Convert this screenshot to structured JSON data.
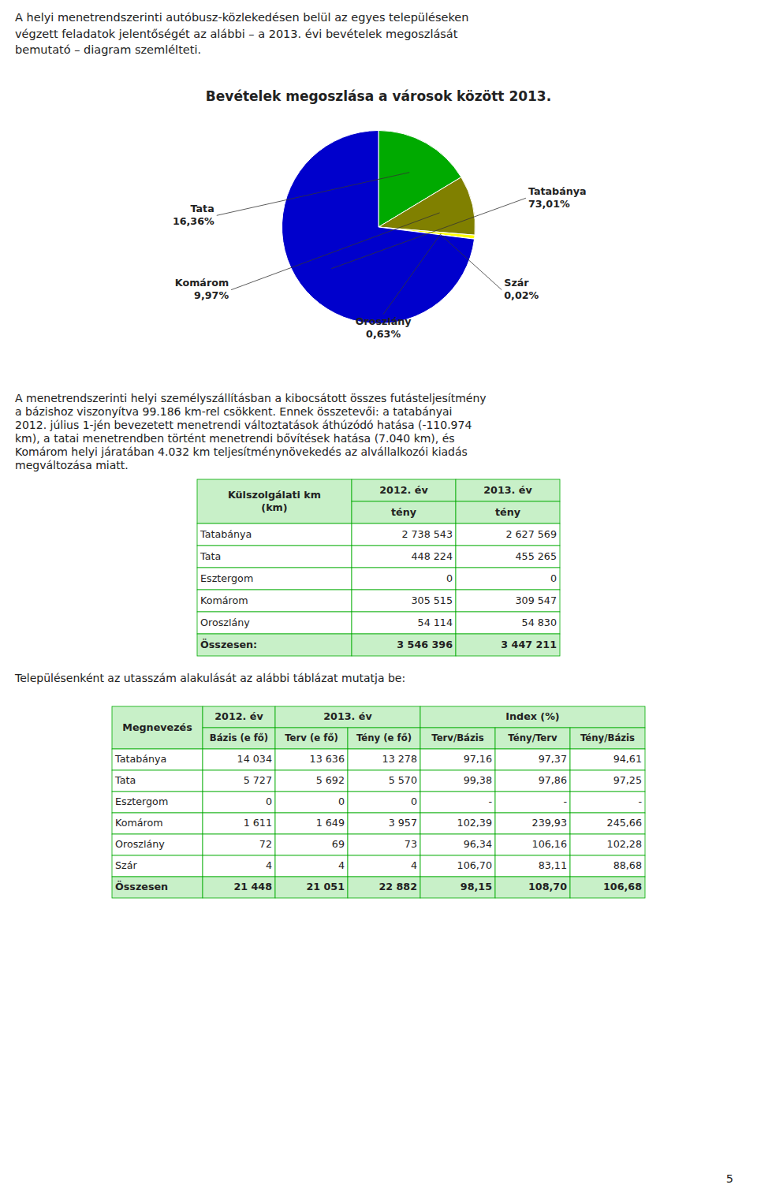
{
  "page_title": [
    "A helyi menetrendszerinti autóbusz-közlekedésen belül az egyes településeken",
    "végzett feladatok jelentőségét az alábbi – a 2013. évi bevételek megoszlását",
    "bemutató – diagram szemlélteti."
  ],
  "chart_data": {
    "type": "pie",
    "title": "Bevételek megoszlása a városok között 2013.",
    "categories": [
      "Tata",
      "Komárom",
      "Oroszlány",
      "Szár",
      "Tatabánya"
    ],
    "values": [
      16.36,
      9.97,
      0.63,
      0.02,
      73.01
    ],
    "value_labels": [
      "16,36%",
      "9,97%",
      "0,63%",
      "0,02%",
      "73,01%"
    ],
    "colors": [
      "#00aa00",
      "#808000",
      "#ffff00",
      "#c0c0c0",
      "#0000cc"
    ]
  },
  "body_text": [
    "A menetrendszerinti helyi személyszállításban a kibocsátott összes futásteljesítmény",
    "a bázishoz viszonyítva 99.186 km-rel csökkent. Ennek összetevői: a tatabányai",
    "2012. július 1-jén bevezetett menetrendi változtatások áthúzódó hatása (-110.974",
    "km), a tatai menetrendben történt menetrendi bővítések hatása (7.040 km), és",
    "Komárom helyi járatában 4.032 km teljesítménynövekedés az alvállalkozói kiadás",
    "megváltozása miatt."
  ],
  "between_tables_text": "Településenként az utasszám alakulását az alábbi táblázat mutatja be:",
  "header_color": "#c8f0c8",
  "border_color": "#00aa00",
  "tables": [
    {
      "corner": [
        "Külszolgálati km",
        "(km)"
      ],
      "groups": [
        {
          "label": "2012. év",
          "span": 1
        },
        {
          "label": "2013. év",
          "span": 1
        }
      ],
      "subheaders": [
        "tény",
        "tény"
      ],
      "rows": [
        [
          "Tatabánya",
          "2 738 543",
          "2 627 569"
        ],
        [
          "Tata",
          "448 224",
          "455 265"
        ],
        [
          "Esztergom",
          "0",
          "0"
        ],
        [
          "Komárom",
          "305 515",
          "309 547"
        ],
        [
          "Oroszlány",
          "54 114",
          "54 830"
        ]
      ],
      "total": [
        "Összesen:",
        "3 546 396",
        "3 447 211"
      ]
    },
    {
      "corner": [
        "Megnevezés"
      ],
      "groups": [
        {
          "label": "2012. év",
          "span": 1
        },
        {
          "label": "2013. év",
          "span": 2
        },
        {
          "label": "Index (%)",
          "span": 3
        }
      ],
      "subheaders": [
        "Bázis (e fő)",
        "Terv (e fő)",
        "Tény (e fő)",
        "Terv/Bázis",
        "Tény/Terv",
        "Tény/Bázis"
      ],
      "rows": [
        [
          "Tatabánya",
          "14 034",
          "13 636",
          "13 278",
          "97,16",
          "97,37",
          "94,61"
        ],
        [
          "Tata",
          "5 727",
          "5 692",
          "5 570",
          "99,38",
          "97,86",
          "97,25"
        ],
        [
          "Esztergom",
          "0",
          "0",
          "0",
          "-",
          "-",
          "-"
        ],
        [
          "Komárom",
          "1 611",
          "1 649",
          "3 957",
          "102,39",
          "239,93",
          "245,66"
        ],
        [
          "Oroszlány",
          "72",
          "69",
          "73",
          "96,34",
          "106,16",
          "102,28"
        ],
        [
          "Szár",
          "4",
          "4",
          "4",
          "106,70",
          "83,11",
          "88,68"
        ]
      ],
      "total": [
        "Összesen",
        "21 448",
        "21 051",
        "22 882",
        "98,15",
        "108,70",
        "106,68"
      ]
    }
  ],
  "page_number": "5"
}
